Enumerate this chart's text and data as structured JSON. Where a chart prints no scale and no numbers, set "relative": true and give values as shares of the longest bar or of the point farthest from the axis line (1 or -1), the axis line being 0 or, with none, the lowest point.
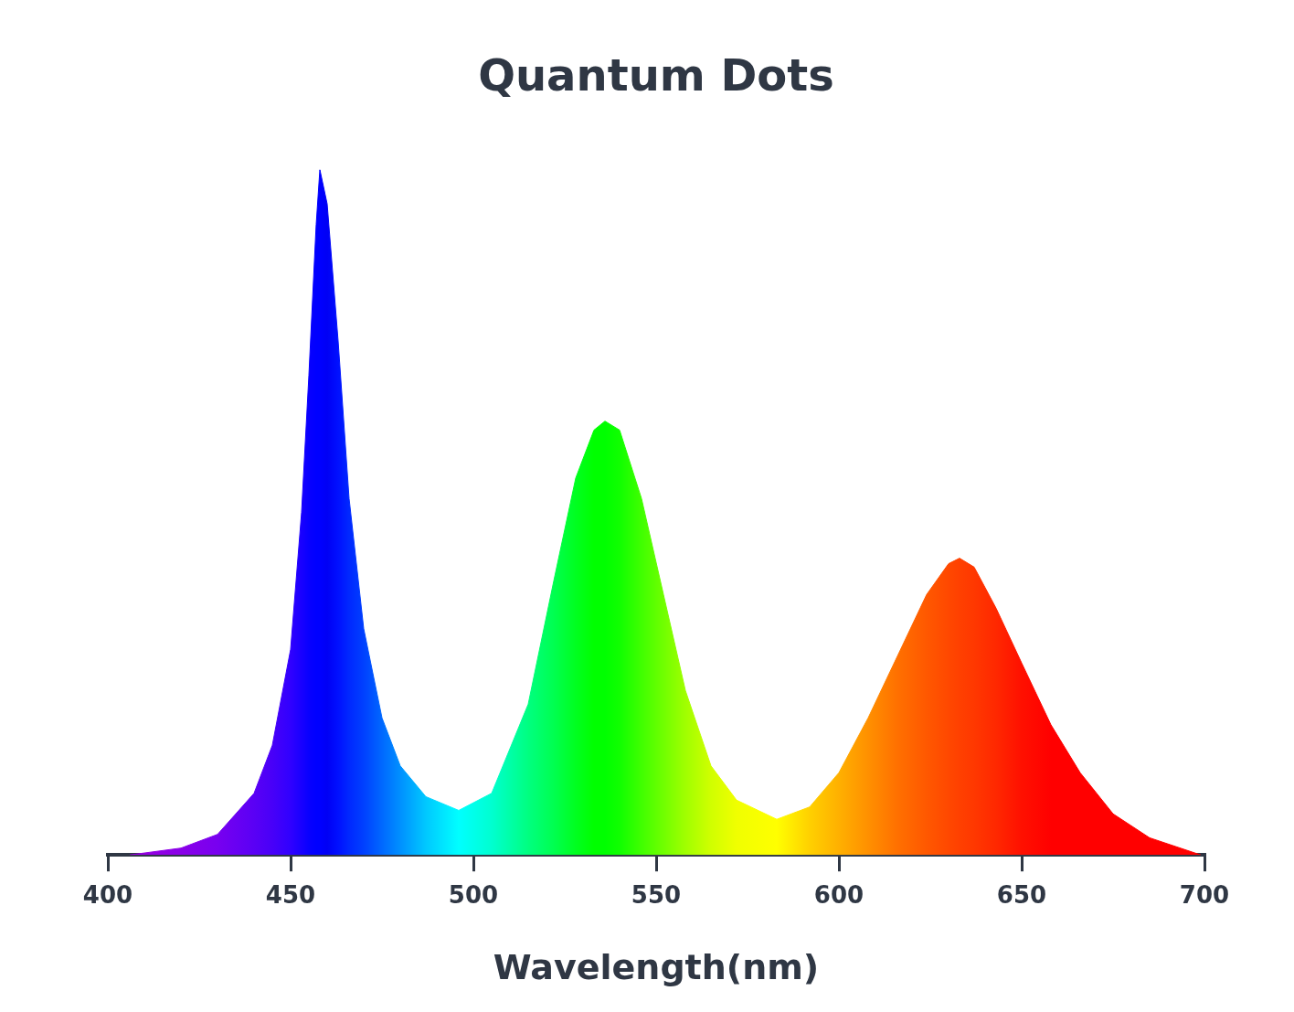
{
  "chart_data": {
    "type": "area",
    "title": "Quantum Dots",
    "xlabel": "Wavelength(nm)",
    "relative": true,
    "x": [
      406,
      420,
      430,
      440,
      445,
      450,
      453,
      455,
      457,
      458,
      460,
      463,
      466,
      470,
      475,
      480,
      487,
      496,
      505,
      515,
      522,
      528,
      533,
      536,
      540,
      546,
      552,
      558,
      565,
      572,
      583,
      592,
      600,
      608,
      616,
      624,
      630,
      633,
      637,
      643,
      650,
      658,
      666,
      675,
      685,
      699
    ],
    "values": [
      0,
      0.01,
      0.03,
      0.09,
      0.16,
      0.3,
      0.5,
      0.7,
      0.92,
      1,
      0.95,
      0.75,
      0.52,
      0.33,
      0.2,
      0.13,
      0.085,
      0.065,
      0.09,
      0.22,
      0.4,
      0.55,
      0.62,
      0.633,
      0.62,
      0.52,
      0.38,
      0.24,
      0.13,
      0.08,
      0.052,
      0.07,
      0.12,
      0.2,
      0.29,
      0.38,
      0.425,
      0.433,
      0.42,
      0.36,
      0.28,
      0.19,
      0.12,
      0.06,
      0.025,
      0
    ],
    "colors": [
      "#9a00e0",
      "#8a00e8",
      "#7800f0",
      "#5a00f5",
      "#4800f8",
      "#3000ff",
      "#1800ff",
      "#0800ff",
      "#0000ff",
      "#0000ff",
      "#0000f5",
      "#0010ff",
      "#0028ff",
      "#0040ff",
      "#0068ff",
      "#0090ff",
      "#00c8ff",
      "#00ffff",
      "#00ffd0",
      "#00ff80",
      "#00ff50",
      "#00ff20",
      "#00ff00",
      "#00ff00",
      "#10ff00",
      "#40ff00",
      "#70ff00",
      "#a0ff00",
      "#d0ff00",
      "#f0ff00",
      "#ffff00",
      "#ffd000",
      "#ffb000",
      "#ff9000",
      "#ff7000",
      "#ff5800",
      "#ff4800",
      "#ff4000",
      "#ff3800",
      "#ff2800",
      "#ff1000",
      "#ff0000",
      "#ff0000",
      "#ff0000",
      "#ff0000",
      "#ff0000"
    ],
    "xlim": [
      400,
      700
    ],
    "xticks": [
      400,
      450,
      500,
      550,
      600,
      650,
      700
    ],
    "grid": false,
    "legend": false
  }
}
